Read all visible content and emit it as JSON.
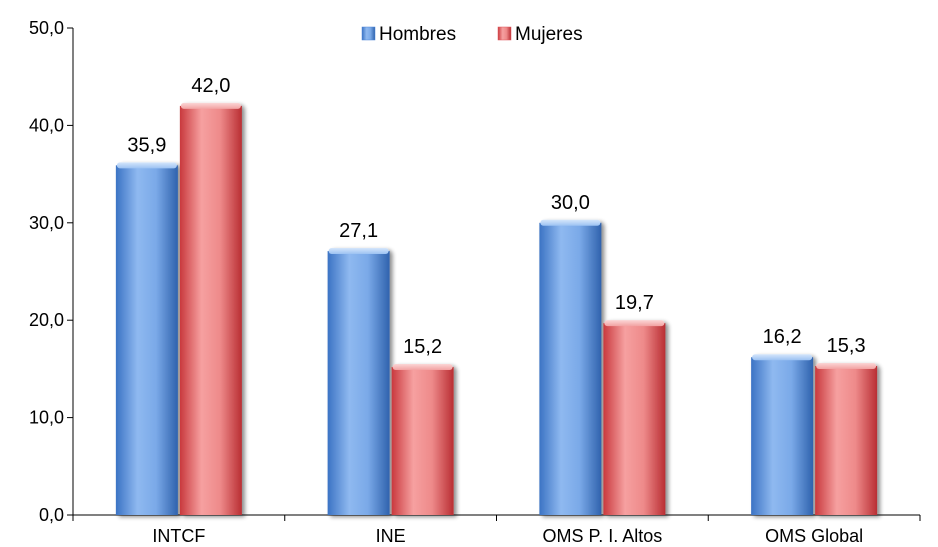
{
  "chart_data": {
    "type": "bar",
    "categories": [
      "INTCF",
      "INE",
      "OMS P. I. Altos",
      "OMS Global"
    ],
    "series": [
      {
        "name": "Hombres",
        "values": [
          35.9,
          27.1,
          30.0,
          16.2
        ],
        "color": "#4a86d8"
      },
      {
        "name": "Mujeres",
        "values": [
          42.0,
          15.2,
          19.7,
          15.3
        ],
        "color": "#e0565a"
      }
    ],
    "value_labels": [
      [
        "35,9",
        "27,1",
        "30,0",
        "16,2"
      ],
      [
        "42,0",
        "15,2",
        "19,7",
        "15,3"
      ]
    ],
    "yticks": [
      0,
      10,
      20,
      30,
      40,
      50
    ],
    "ytick_labels": [
      "0,0",
      "10,0",
      "20,0",
      "30,0",
      "40,0",
      "50,0"
    ],
    "ylim": [
      0,
      50
    ],
    "legend_position": "top-center",
    "grid": false
  }
}
